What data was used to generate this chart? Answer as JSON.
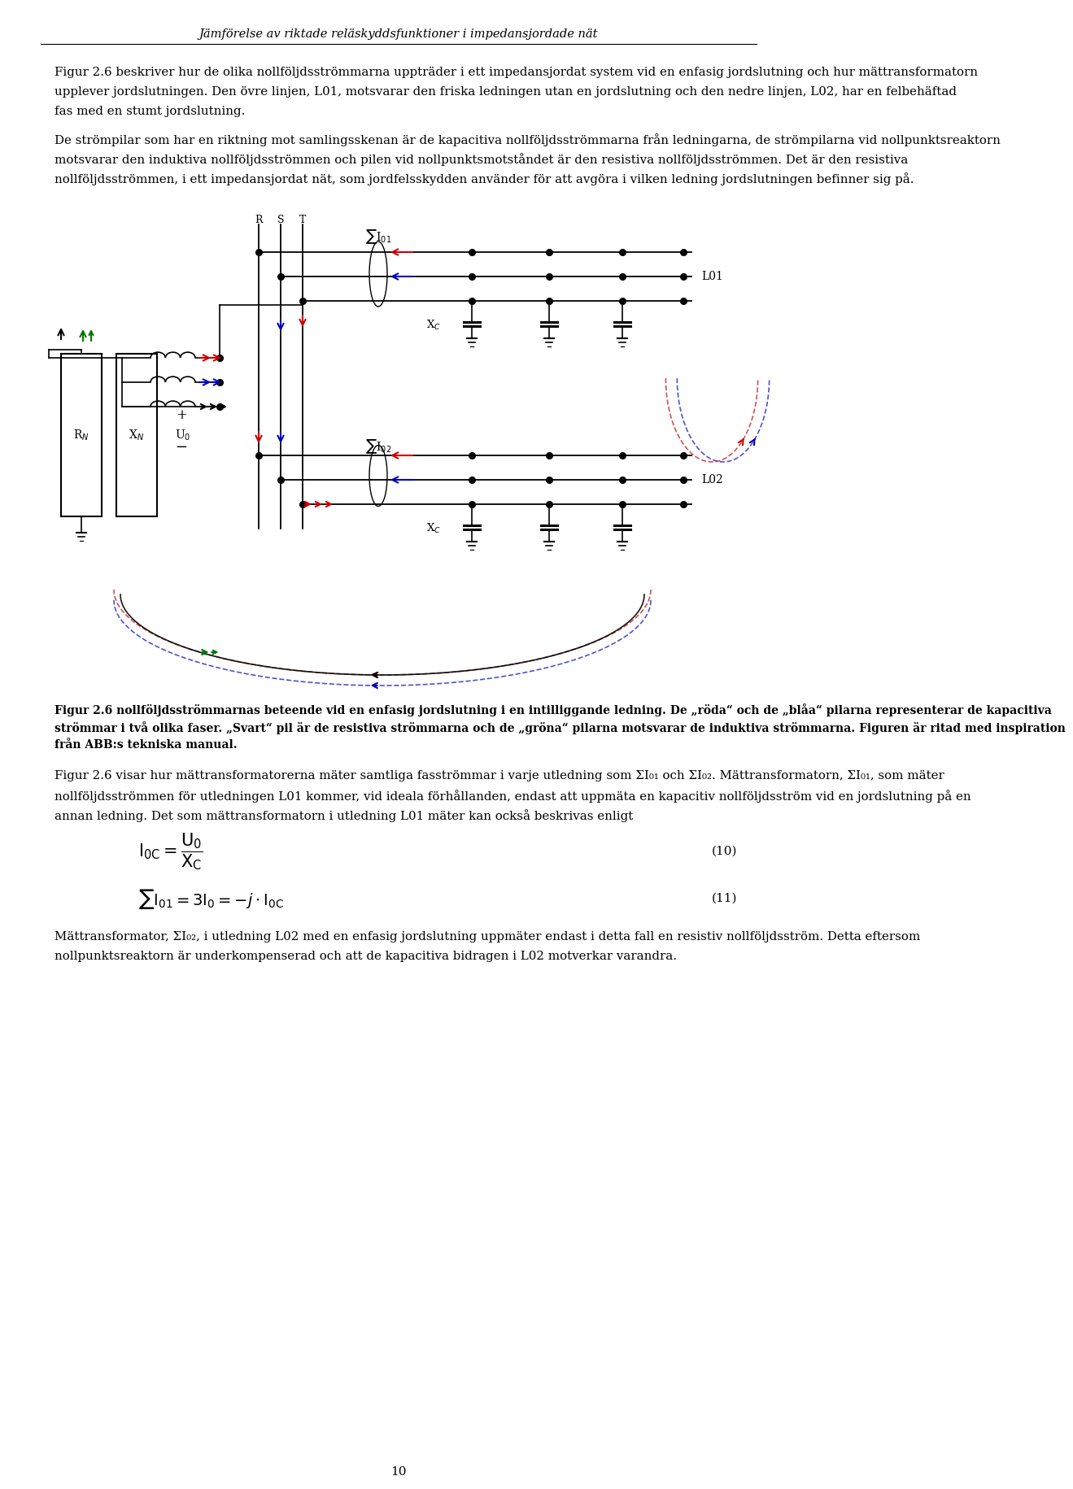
{
  "title_italic": "Jämförelse av riktade reläskyddsfunktioner i impedansjordade nät",
  "bg_color": "#ffffff",
  "text_color": "#000000",
  "page_number": "10",
  "para1": "Figur 2.6 beskriver hur de olika nollföljdsströmmarna uppträder i ett impedansjordat system vid en enfasig jordslutning och hur mättransformatorn upplever jordslutningen. Den övre linjen, L01, motsvarar den friska ledningen utan en jordslutning och den nedre linjen, L02, har en felbehäftad fas med en stumt jordslutning.",
  "para2": "De strömpilar som har en riktning mot samlingsskenan är de kapacitiva nollföljdsströmmarna från ledningarna, de strömpilarna vid nollpunktsreaktorn motsvarar den induktiva nollföljdsströmmen och pilen vid nollpunktsmotståndet är den resistiva nollföljdsströmmen. Det är den resistiva nollföljdsströmmen, i ett impedansjordat nät, som jordfelsskydden använder för att avgöra i vilken ledning jordslutningen befinner sig på.",
  "fig_caption_bold": "Figur 2.6 nollföljdsströmmarnas beteende vid en enfasig jordslutning i en intilliggande ledning. De „röda“ och de „blåa“ pilarna representerar de kapacitiva strömmar i två olika faser. „Svart“ pil är de resistiva strömmarna och de „gröna“ pilarna motsvarar de induktiva strömmarna. Figuren är ritad med inspiration från ABB:s tekniska manual.",
  "para3_plain": "Figur 2.6 visar hur mättransformatorerna mäter samtliga fasströmmar i varje utledning som",
  "para3_rest": "och",
  "para3_cont": ". Mättransformatorn,",
  "para3_cont2": ", som mäter nollföljdsströmmen för utledningen L01 kommer, vid ideala förhållanden, endast att uppmäta en kapacitiv nollföljdsström vid en jordslutning på en annan ledning. Det som mättransformatorn i utledning L01 mäter kan också beskrivas enligt",
  "para4": "Mättransformator,",
  "para4_cont": ", i utledning L02 med en enfasig jordslutning uppmäter endast i detta fall en resistiv nollföljdsström. Detta eftersom nollpunktsreaktorn är underkompenserad och att de kapacitiva bidragen i L02 motverkar varandra."
}
